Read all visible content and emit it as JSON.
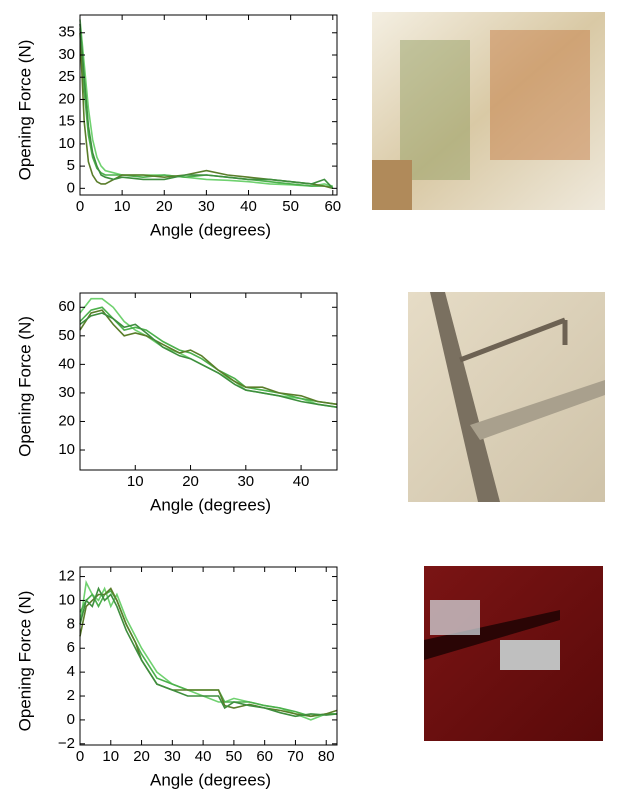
{
  "chart_data": [
    {
      "type": "line",
      "x_label": "Angle (degrees)",
      "y_label": "Opening Force (N)",
      "xlim": [
        0,
        61
      ],
      "ylim": [
        -1.5,
        39
      ],
      "xticks": [
        0,
        10,
        20,
        30,
        40,
        50,
        60
      ],
      "yticks": [
        0,
        5,
        10,
        15,
        20,
        25,
        30,
        35
      ],
      "x": [
        0,
        1,
        2,
        3,
        4,
        5,
        6,
        8,
        10,
        15,
        20,
        25,
        30,
        35,
        40,
        45,
        50,
        55,
        58,
        60
      ],
      "series": [
        {
          "color": "#6fd16f",
          "values": [
            38,
            28,
            18,
            11,
            7,
            5,
            4,
            3.5,
            3,
            3,
            3,
            2.5,
            2,
            1.8,
            1.5,
            1,
            0.8,
            0.5,
            1,
            0.5
          ]
        },
        {
          "color": "#4cb04c",
          "values": [
            36,
            22,
            12,
            7,
            4.5,
            3.5,
            3,
            3,
            3,
            2.5,
            3,
            2.5,
            3,
            2.5,
            2,
            1.5,
            1,
            0.5,
            0.5,
            0.3
          ]
        },
        {
          "color": "#5a7d2a",
          "values": [
            35,
            15,
            6,
            3,
            1.5,
            1,
            1,
            2,
            3,
            3,
            2.5,
            3,
            4,
            3,
            2.5,
            2,
            1.5,
            1,
            0.5,
            0
          ]
        },
        {
          "color": "#3e8e3e",
          "values": [
            37,
            25,
            14,
            8,
            5,
            3,
            2.5,
            2,
            2.5,
            2,
            2,
            3,
            3,
            2.5,
            2,
            2,
            1.5,
            1,
            2,
            0
          ]
        }
      ]
    },
    {
      "type": "line",
      "x_label": "Angle (degrees)",
      "y_label": "Opening Force (N)",
      "xlim": [
        0,
        46.5
      ],
      "ylim": [
        3,
        65
      ],
      "xticks": [
        10,
        20,
        30,
        40
      ],
      "yticks": [
        10,
        20,
        30,
        40,
        50,
        60
      ],
      "x": [
        0,
        2,
        4,
        6,
        8,
        10,
        12,
        15,
        18,
        20,
        22,
        25,
        28,
        30,
        33,
        36,
        40,
        43,
        46.5
      ],
      "series": [
        {
          "color": "#6fd16f",
          "values": [
            58,
            63,
            63,
            60,
            55,
            52,
            50,
            46,
            44,
            42,
            40,
            37,
            34,
            31,
            30,
            29,
            28,
            26,
            25
          ]
        },
        {
          "color": "#4cb04c",
          "values": [
            55,
            59,
            60,
            56,
            52,
            53,
            52,
            48,
            45,
            44,
            42,
            38,
            35,
            32,
            31,
            30,
            28,
            27,
            26
          ]
        },
        {
          "color": "#5a7d2a",
          "values": [
            52,
            58,
            59,
            54,
            50,
            51,
            50,
            47,
            44,
            45,
            43,
            38,
            34,
            32,
            32,
            30,
            29,
            27,
            26
          ]
        },
        {
          "color": "#3e8e3e",
          "values": [
            54,
            57,
            58,
            56,
            53,
            54,
            51,
            46,
            43,
            42,
            40,
            37,
            33,
            31,
            30,
            29,
            27,
            26,
            25
          ]
        }
      ]
    },
    {
      "type": "line",
      "x_label": "Angle (degrees)",
      "y_label": "Opening Force (N)",
      "xlim": [
        0,
        83.5
      ],
      "ylim": [
        -2.1,
        12.8
      ],
      "xticks": [
        0,
        10,
        20,
        30,
        40,
        50,
        60,
        70,
        80
      ],
      "yticks": [
        {
          "value": -2,
          "label": "−2"
        },
        0,
        2,
        4,
        6,
        8,
        10,
        12
      ],
      "x": [
        0,
        2,
        4,
        6,
        8,
        10,
        12,
        15,
        18,
        20,
        25,
        30,
        35,
        40,
        45,
        47,
        50,
        55,
        60,
        65,
        70,
        75,
        80,
        83.5
      ],
      "series": [
        {
          "color": "#6fd16f",
          "values": [
            8,
            11.5,
            10.5,
            10,
            11,
            9.5,
            10.5,
            8.5,
            7,
            6,
            4,
            3,
            2.5,
            2,
            1.5,
            1.5,
            1.8,
            1.5,
            1.2,
            1,
            0.5,
            0,
            0.5,
            0.5
          ]
        },
        {
          "color": "#4cb04c",
          "values": [
            9,
            10,
            10.5,
            9.5,
            10.5,
            10.8,
            10,
            8,
            6.5,
            5.5,
            3.5,
            3,
            2.5,
            2.5,
            2.5,
            1.5,
            1.5,
            1.5,
            1.2,
            1,
            0.7,
            0.3,
            0.5,
            0.5
          ]
        },
        {
          "color": "#5a7d2a",
          "values": [
            7,
            9.5,
            10,
            10.5,
            10.5,
            11,
            10,
            8,
            6.5,
            5,
            3,
            2.5,
            2.5,
            2.5,
            2.5,
            1.2,
            1,
            1.3,
            1,
            0.8,
            0.5,
            0.3,
            0.5,
            0.8
          ]
        },
        {
          "color": "#3e8e3e",
          "values": [
            8,
            10,
            9.5,
            11,
            10,
            10.5,
            9.5,
            7.5,
            6,
            5,
            3,
            2.5,
            2,
            2,
            2,
            1,
            1.5,
            1.2,
            1,
            0.6,
            0.3,
            0.5,
            0.4,
            0.5
          ]
        }
      ]
    }
  ]
}
